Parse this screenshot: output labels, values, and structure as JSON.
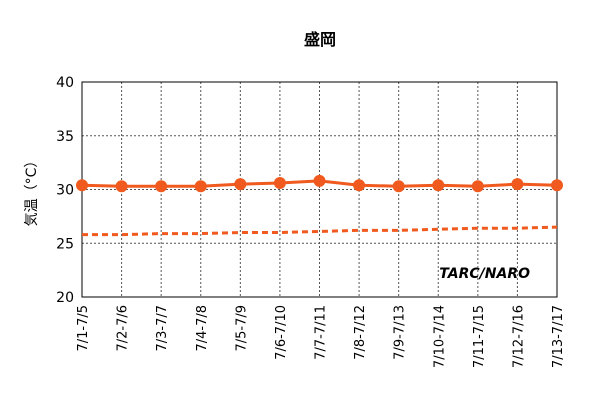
{
  "chart_data": {
    "type": "line",
    "title": "盛岡",
    "y_label": "気温（°C）",
    "annotation": "TARC/NARO",
    "categories": [
      "7/1-7/5",
      "7/2-7/6",
      "7/3-7/7",
      "7/4-7/8",
      "7/5-7/9",
      "7/6-7/10",
      "7/7-7/11",
      "7/8-7/12",
      "7/9-7/13",
      "7/10-7/14",
      "7/11-7/15",
      "7/12-7/16",
      "7/13-7/17"
    ],
    "series": [
      {
        "color": "#f05a1e",
        "style": "solid",
        "marker": true,
        "values": [
          30.4,
          30.3,
          30.3,
          30.3,
          30.5,
          30.6,
          30.8,
          30.4,
          30.3,
          30.4,
          30.3,
          30.5,
          30.4
        ]
      },
      {
        "color": "#f05a1e",
        "style": "dashed",
        "marker": false,
        "values": [
          25.8,
          25.8,
          25.9,
          25.9,
          26.0,
          26.0,
          26.1,
          26.2,
          26.2,
          26.3,
          26.4,
          26.4,
          26.5
        ]
      }
    ],
    "ylim": [
      20,
      40
    ],
    "yticks": [
      20,
      25,
      30,
      35,
      40
    ],
    "grid": true
  }
}
